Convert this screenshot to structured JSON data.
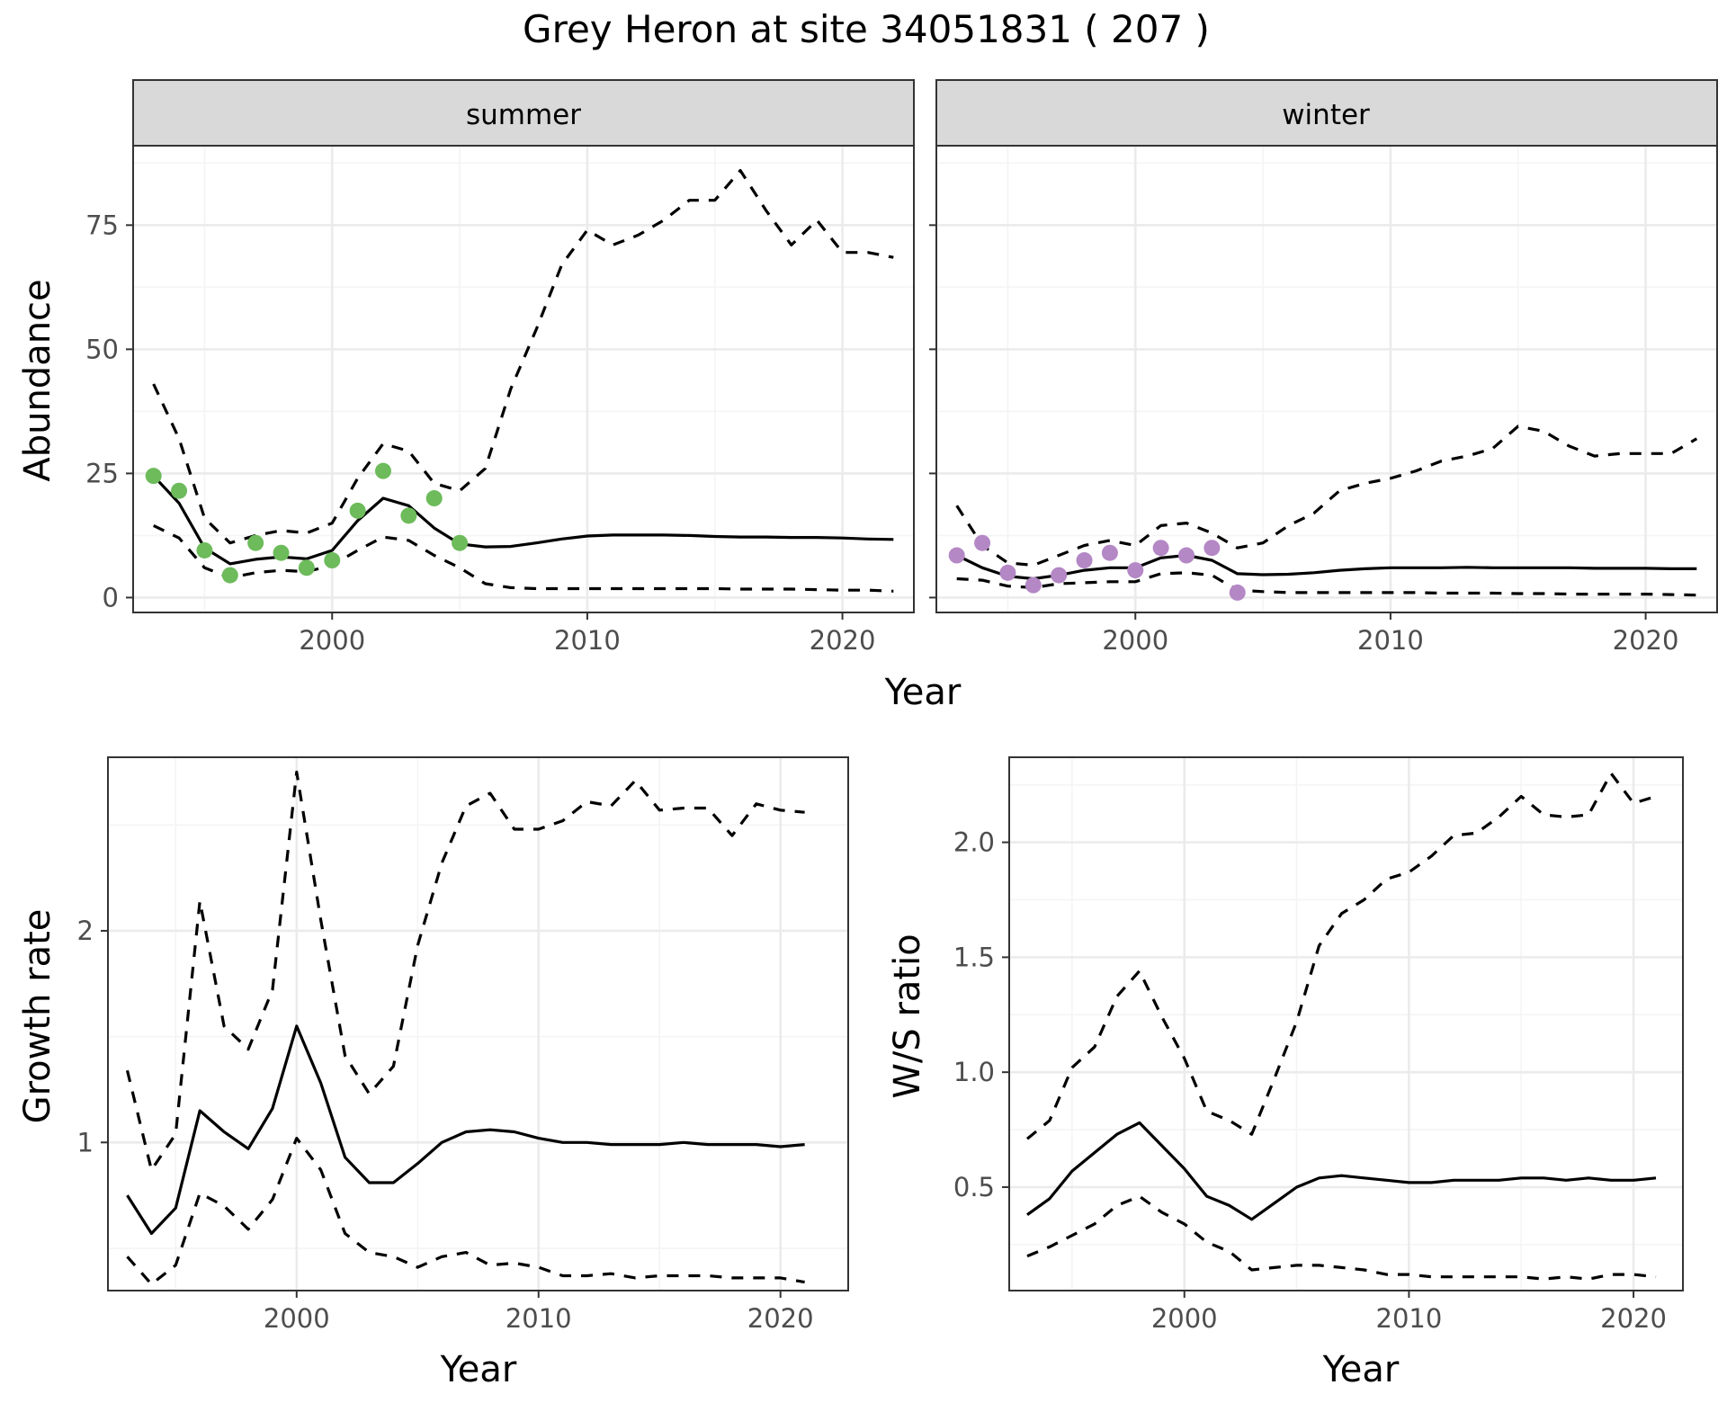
{
  "title": "Grey Heron at site 34051831 ( 207 )",
  "colors": {
    "summer_points": "#6dbb5b",
    "winter_points": "#b487c5",
    "line": "#000000",
    "strip_bg": "#d9d9d9",
    "grid": "#ebebeb"
  },
  "chart_data": [
    {
      "id": "abundance",
      "type": "line",
      "ylabel": "Abundance",
      "xlabel": "Year",
      "xlim": [
        1992.2,
        2022.8
      ],
      "ylim": [
        -3,
        91
      ],
      "xticks": [
        2000,
        2010,
        2020
      ],
      "yticks": [
        0,
        25,
        50,
        75
      ],
      "facets": [
        {
          "label": "summer",
          "x": [
            1993,
            1994,
            1995,
            1996,
            1997,
            1998,
            1999,
            2000,
            2001,
            2002,
            2003,
            2004,
            2005,
            2006,
            2007,
            2008,
            2009,
            2010,
            2011,
            2012,
            2013,
            2014,
            2015,
            2016,
            2017,
            2018,
            2019,
            2020,
            2021,
            2022
          ],
          "fit": [
            24.5,
            19,
            10,
            6.8,
            7.7,
            8.2,
            7.8,
            9.5,
            15.5,
            20,
            18.5,
            14,
            10.8,
            10.2,
            10.3,
            11,
            11.8,
            12.4,
            12.6,
            12.6,
            12.6,
            12.5,
            12.3,
            12.2,
            12.2,
            12.1,
            12.1,
            12,
            11.8,
            11.7
          ],
          "upper": [
            43,
            32,
            16,
            11,
            12.5,
            13.5,
            13,
            15,
            24,
            31,
            29.5,
            23,
            21.5,
            26,
            42,
            54,
            67,
            74,
            71,
            73,
            76,
            80,
            80,
            86,
            78,
            71,
            76,
            69.5,
            69.5,
            68.5
          ],
          "lower": [
            14.5,
            12,
            6,
            4,
            5,
            5.5,
            5.2,
            6.5,
            9.5,
            12.2,
            11.5,
            8.5,
            6,
            2.8,
            2,
            1.8,
            1.8,
            1.8,
            1.8,
            1.8,
            1.8,
            1.8,
            1.8,
            1.7,
            1.7,
            1.7,
            1.6,
            1.5,
            1.5,
            1.3
          ],
          "points_x": [
            1993,
            1994,
            1995,
            1996,
            1997,
            1998,
            1999,
            2000,
            2001,
            2002,
            2003,
            2004,
            2005
          ],
          "points_y": [
            24.5,
            21.5,
            9.5,
            4.5,
            11,
            9,
            6,
            7.5,
            17.5,
            25.5,
            16.5,
            20,
            11
          ]
        },
        {
          "label": "winter",
          "x": [
            1993,
            1994,
            1995,
            1996,
            1997,
            1998,
            1999,
            2000,
            2001,
            2002,
            2003,
            2004,
            2005,
            2006,
            2007,
            2008,
            2009,
            2010,
            2011,
            2012,
            2013,
            2014,
            2015,
            2016,
            2017,
            2018,
            2019,
            2020,
            2021,
            2022
          ],
          "fit": [
            8.5,
            6,
            4.3,
            3.8,
            4.5,
            5.5,
            6,
            6,
            8,
            8.5,
            7.5,
            4.8,
            4.6,
            4.7,
            5,
            5.5,
            5.8,
            6,
            6,
            6,
            6.1,
            6,
            6,
            6,
            6,
            5.9,
            5.9,
            5.9,
            5.8,
            5.8
          ],
          "upper": [
            18.5,
            10.5,
            7,
            6.5,
            8.5,
            10.5,
            11.5,
            10.5,
            14.5,
            15,
            13,
            10,
            11,
            14.5,
            17,
            21.5,
            23,
            24,
            25.5,
            27.5,
            28.5,
            30,
            34.5,
            33.5,
            30.5,
            28.5,
            29,
            29,
            29,
            32
          ],
          "lower": [
            3.8,
            3.5,
            2.3,
            2,
            2.8,
            3,
            3.2,
            3.2,
            4.8,
            5,
            4.5,
            1.5,
            1.2,
            1,
            1,
            1,
            1,
            1,
            1,
            0.9,
            0.9,
            0.9,
            0.8,
            0.8,
            0.7,
            0.7,
            0.7,
            0.7,
            0.6,
            0.5
          ],
          "points_x": [
            1993,
            1994,
            1995,
            1996,
            1997,
            1998,
            1999,
            2000,
            2001,
            2002,
            2003,
            2004
          ],
          "points_y": [
            8.5,
            11,
            5,
            2.5,
            4.5,
            7.5,
            9,
            5.5,
            10,
            8.5,
            10,
            1
          ]
        }
      ]
    },
    {
      "id": "growth",
      "type": "line",
      "ylabel": "Growth rate",
      "xlabel": "Year",
      "xlim": [
        1992.2,
        2022.8
      ],
      "ylim": [
        0.3,
        2.82
      ],
      "xticks": [
        2000,
        2010,
        2020
      ],
      "yticks": [
        1,
        2
      ],
      "x": [
        1993,
        1994,
        1995,
        1996,
        1997,
        1998,
        1999,
        2000,
        2001,
        2002,
        2003,
        2004,
        2005,
        2006,
        2007,
        2008,
        2009,
        2010,
        2011,
        2012,
        2013,
        2014,
        2015,
        2016,
        2017,
        2018,
        2019,
        2020,
        2021
      ],
      "fit": [
        0.75,
        0.57,
        0.69,
        1.15,
        1.05,
        0.97,
        1.16,
        1.55,
        1.28,
        0.93,
        0.81,
        0.81,
        0.9,
        1.0,
        1.05,
        1.06,
        1.05,
        1.02,
        1.0,
        1.0,
        0.99,
        0.99,
        0.99,
        1.0,
        0.99,
        0.99,
        0.99,
        0.98,
        0.99
      ],
      "upper": [
        1.34,
        0.87,
        1.04,
        2.14,
        1.55,
        1.44,
        1.72,
        2.75,
        2.05,
        1.41,
        1.23,
        1.36,
        1.93,
        2.32,
        2.59,
        2.65,
        2.48,
        2.48,
        2.52,
        2.61,
        2.59,
        2.71,
        2.57,
        2.58,
        2.58,
        2.45,
        2.6,
        2.57,
        2.56
      ],
      "lower": [
        0.46,
        0.33,
        0.42,
        0.76,
        0.7,
        0.59,
        0.73,
        1.02,
        0.87,
        0.57,
        0.48,
        0.46,
        0.41,
        0.46,
        0.48,
        0.42,
        0.43,
        0.41,
        0.37,
        0.37,
        0.38,
        0.36,
        0.37,
        0.37,
        0.37,
        0.36,
        0.36,
        0.36,
        0.34
      ]
    },
    {
      "id": "ws_ratio",
      "type": "line",
      "ylabel": "W/S ratio",
      "xlabel": "Year",
      "xlim": [
        1992.2,
        2022.2
      ],
      "ylim": [
        0.05,
        2.37
      ],
      "xticks": [
        2000,
        2010,
        2020
      ],
      "yticks": [
        0.5,
        1.0,
        1.5,
        2.0
      ],
      "ytick_labels": [
        "0.5",
        "1.0",
        "1.5",
        "2.0"
      ],
      "x": [
        1993,
        1994,
        1995,
        1996,
        1997,
        1998,
        1999,
        2000,
        2001,
        2002,
        2003,
        2004,
        2005,
        2006,
        2007,
        2008,
        2009,
        2010,
        2011,
        2012,
        2013,
        2014,
        2015,
        2016,
        2017,
        2018,
        2019,
        2020,
        2021
      ],
      "fit": [
        0.38,
        0.45,
        0.57,
        0.65,
        0.73,
        0.78,
        0.68,
        0.58,
        0.46,
        0.42,
        0.36,
        0.43,
        0.5,
        0.54,
        0.55,
        0.54,
        0.53,
        0.52,
        0.52,
        0.53,
        0.53,
        0.53,
        0.54,
        0.54,
        0.53,
        0.54,
        0.53,
        0.53,
        0.54
      ],
      "upper": [
        0.71,
        0.79,
        1.02,
        1.11,
        1.33,
        1.44,
        1.24,
        1.06,
        0.83,
        0.79,
        0.73,
        0.97,
        1.22,
        1.55,
        1.69,
        1.75,
        1.84,
        1.87,
        1.94,
        2.03,
        2.04,
        2.11,
        2.2,
        2.12,
        2.11,
        2.12,
        2.3,
        2.17,
        2.2
      ],
      "lower": [
        0.2,
        0.24,
        0.29,
        0.34,
        0.42,
        0.46,
        0.39,
        0.34,
        0.26,
        0.22,
        0.14,
        0.15,
        0.16,
        0.16,
        0.15,
        0.14,
        0.12,
        0.12,
        0.11,
        0.11,
        0.11,
        0.11,
        0.11,
        0.1,
        0.11,
        0.1,
        0.12,
        0.12,
        0.11
      ]
    }
  ]
}
